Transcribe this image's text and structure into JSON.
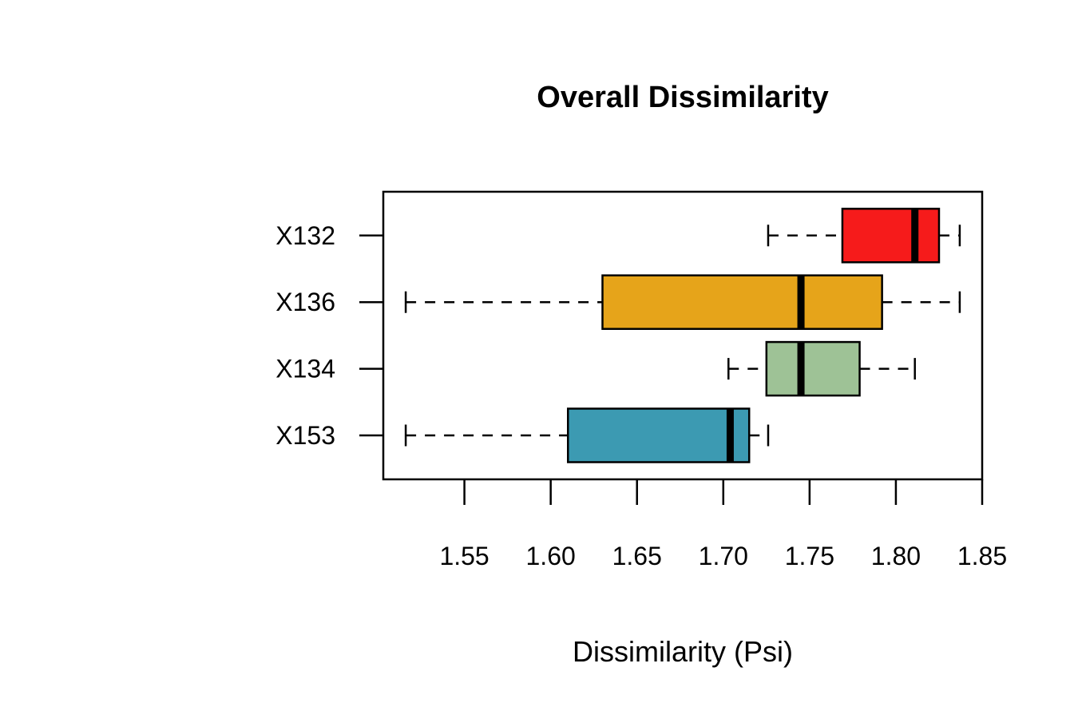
{
  "chart_data": {
    "type": "boxplot",
    "orientation": "horizontal",
    "title": "Overall Dissimilarity",
    "xlabel": "Dissimilarity (Psi)",
    "ylabel": "",
    "xlim": [
      1.503,
      1.85
    ],
    "x_ticks": [
      1.55,
      1.6,
      1.65,
      1.7,
      1.75,
      1.8,
      1.85
    ],
    "x_tick_labels": [
      "1.55",
      "1.60",
      "1.65",
      "1.70",
      "1.75",
      "1.80",
      "1.85"
    ],
    "grid": false,
    "legend": "none",
    "series": [
      {
        "name": "X153",
        "color": "#3C9AB2",
        "whisker_low": 1.516,
        "q1": 1.61,
        "median": 1.704,
        "q3": 1.715,
        "whisker_high": 1.726
      },
      {
        "name": "X134",
        "color": "#9EC296",
        "whisker_low": 1.703,
        "q1": 1.725,
        "median": 1.745,
        "q3": 1.779,
        "whisker_high": 1.811
      },
      {
        "name": "X136",
        "color": "#E6A41A",
        "whisker_low": 1.516,
        "q1": 1.63,
        "median": 1.745,
        "q3": 1.792,
        "whisker_high": 1.837
      },
      {
        "name": "X132",
        "color": "#F61B1B",
        "whisker_low": 1.726,
        "q1": 1.769,
        "median": 1.811,
        "q3": 1.825,
        "whisker_high": 1.837
      }
    ]
  }
}
